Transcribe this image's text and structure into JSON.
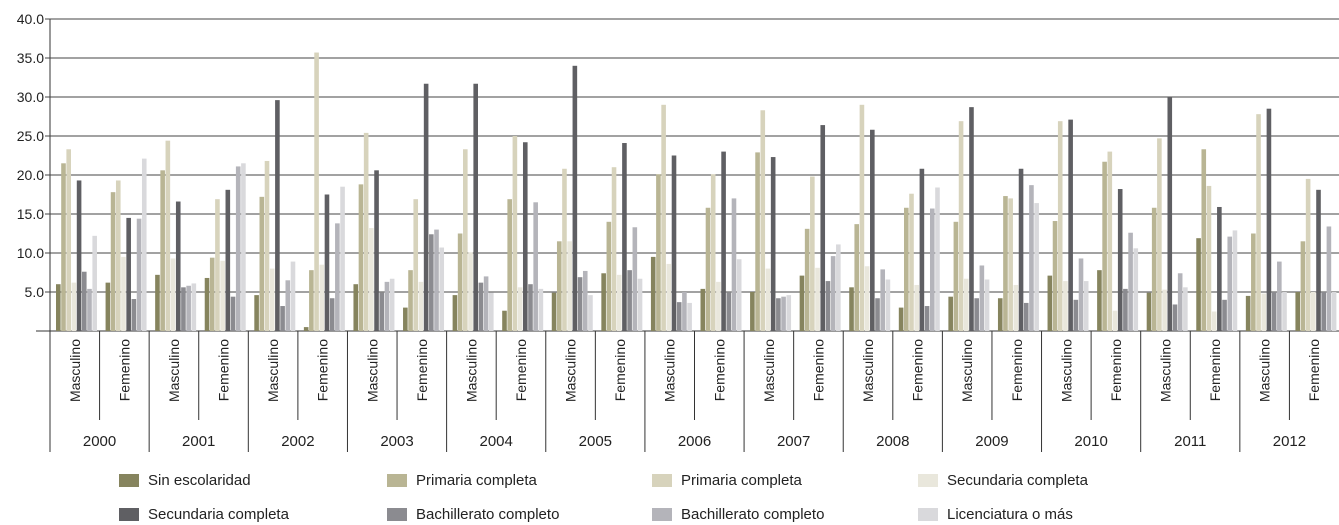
{
  "chart_data": {
    "type": "bar",
    "title": "",
    "xlabel": "",
    "ylabel": "",
    "ylim": [
      0,
      40
    ],
    "yticks": [
      "40.0",
      "35.0",
      "30.0",
      "25.0",
      "20.0",
      "15.0",
      "10.0",
      "5.0"
    ],
    "grid": true,
    "legend_position": "bottom",
    "years": [
      "2000",
      "2001",
      "2002",
      "2003",
      "2004",
      "2005",
      "2006",
      "2007",
      "2008",
      "2009",
      "2010",
      "2011",
      "2012"
    ],
    "genders": [
      "Masculino",
      "Femenino"
    ],
    "categories": [
      "2000 Masculino",
      "2000 Femenino",
      "2001 Masculino",
      "2001 Femenino",
      "2002 Masculino",
      "2002 Femenino",
      "2003 Masculino",
      "2003 Femenino",
      "2004 Masculino",
      "2004 Femenino",
      "2005 Masculino",
      "2005 Femenino",
      "2006 Masculino",
      "2006 Femenino",
      "2007 Masculino",
      "2007 Femenino",
      "2008 Masculino",
      "2008 Femenino",
      "2009 Masculino",
      "2009 Femenino",
      "2010 Masculino",
      "2010 Femenino",
      "2011 Masculino",
      "2011 Femenino",
      "2012 Masculino",
      "2012 Femenino"
    ],
    "series": [
      {
        "name": "Sin escolaridad",
        "color": "#86845e",
        "values": [
          6.0,
          6.2,
          7.2,
          6.8,
          4.6,
          0.5,
          6.0,
          3.0,
          4.6,
          2.6,
          4.9,
          7.4,
          9.5,
          5.4,
          5.0,
          7.1,
          5.6,
          3.0,
          4.4,
          4.2,
          7.1,
          7.8,
          4.9,
          11.9,
          4.5,
          5.0
        ]
      },
      {
        "name": "Primaria completa",
        "color": "#b9b594",
        "values": [
          21.5,
          17.8,
          20.6,
          9.4,
          17.2,
          7.8,
          18.8,
          7.8,
          12.5,
          16.9,
          11.5,
          14.0,
          20.1,
          15.8,
          22.9,
          13.1,
          13.7,
          15.8,
          14.0,
          17.3,
          14.1,
          21.7,
          15.8,
          23.3,
          12.5,
          11.5
        ]
      },
      {
        "name": "Primaria completa",
        "color": "#d7d3bc",
        "values": [
          23.3,
          19.3,
          24.4,
          16.9,
          21.8,
          35.7,
          25.4,
          16.9,
          23.3,
          25.0,
          20.8,
          21.0,
          29.0,
          20.1,
          28.3,
          19.8,
          29.0,
          17.6,
          26.9,
          17.0,
          26.9,
          23.0,
          24.7,
          18.6,
          27.8,
          19.5
        ]
      },
      {
        "name": "Secundaria completa",
        "color": "#e9e7dc",
        "values": [
          6.2,
          9.5,
          9.3,
          9.0,
          8.0,
          8.5,
          13.2,
          6.3,
          10.1,
          5.6,
          11.5,
          7.2,
          8.6,
          6.3,
          8.0,
          8.1,
          8.3,
          5.9,
          6.7,
          5.9,
          6.4,
          2.6,
          5.3,
          2.5,
          4.8,
          5.0
        ]
      },
      {
        "name": "Secundaria completa",
        "color": "#5f5f63",
        "values": [
          19.3,
          14.5,
          16.6,
          18.1,
          29.6,
          17.5,
          20.6,
          31.7,
          31.7,
          24.2,
          34.0,
          24.1,
          22.5,
          23.0,
          22.3,
          26.4,
          25.8,
          20.8,
          28.7,
          20.8,
          27.1,
          18.2,
          30.0,
          15.9,
          28.5,
          18.1
        ]
      },
      {
        "name": "Bachillerato completo",
        "color": "#8b8b90",
        "values": [
          7.6,
          4.1,
          5.6,
          4.4,
          3.2,
          4.2,
          4.9,
          12.4,
          6.2,
          6.0,
          6.9,
          7.8,
          3.7,
          4.9,
          4.2,
          6.4,
          4.2,
          3.2,
          4.2,
          3.6,
          4.0,
          5.4,
          3.4,
          4.0,
          5.0,
          5.0
        ]
      },
      {
        "name": "Bachillerato completo",
        "color": "#b4b4ba",
        "values": [
          5.4,
          14.4,
          5.8,
          21.1,
          6.5,
          13.8,
          6.3,
          13.0,
          7.0,
          16.5,
          7.7,
          13.3,
          5.0,
          17.0,
          4.4,
          9.6,
          7.9,
          15.7,
          8.4,
          18.7,
          9.3,
          12.6,
          7.4,
          12.1,
          8.9,
          13.4
        ]
      },
      {
        "name": "Licenciatura o más",
        "color": "#d9d9dc",
        "values": [
          12.2,
          22.1,
          6.1,
          21.5,
          8.9,
          18.5,
          6.7,
          10.7,
          4.9,
          5.4,
          4.6,
          6.7,
          3.6,
          9.2,
          4.6,
          11.1,
          6.6,
          18.4,
          6.6,
          16.4,
          6.4,
          10.6,
          5.6,
          12.9,
          5.0,
          5.0
        ]
      }
    ],
    "legend_order": [
      0,
      1,
      2,
      3,
      4,
      5,
      6,
      7
    ]
  }
}
